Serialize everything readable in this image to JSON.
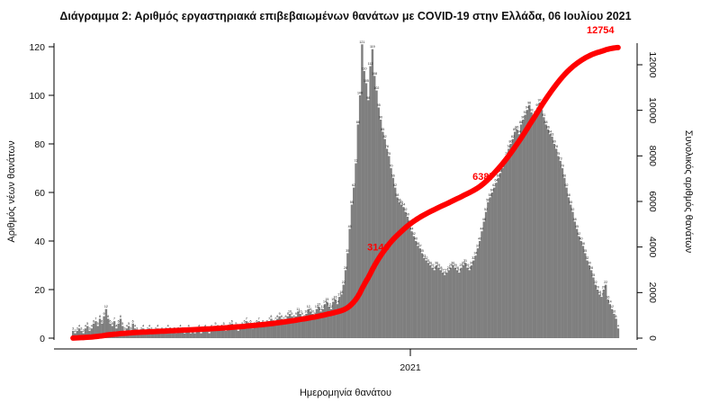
{
  "chart_data": {
    "type": "bar",
    "title": "Διάγραμμα 2: Αριθμός εργαστηριακά επιβεβαιωμένων θανάτων με COVID-19 στην Ελλάδα, 06 Ιουλίου 2021",
    "xlabel": "Ημερομηνία θανάτου",
    "ylabel": "Αριθμός νέων θανάτων",
    "y2label": "Συνολικός αριθμός θανάτων",
    "x_tick_labels": [
      "2021"
    ],
    "ylim": [
      0,
      125
    ],
    "yticks": [
      0,
      20,
      40,
      60,
      80,
      100,
      120
    ],
    "y2lim": [
      0,
      12800
    ],
    "y2ticks": [
      0,
      2000,
      4000,
      6000,
      8000,
      10000,
      12000
    ],
    "grid": false,
    "bar_color": "#7f7f7f",
    "line_color": "#ff0000",
    "series": [
      {
        "type": "bar",
        "values": [
          3,
          2,
          3,
          4,
          3,
          2,
          4,
          5,
          3,
          4,
          6,
          7,
          5,
          8,
          6,
          9,
          12,
          8,
          6,
          5,
          7,
          4,
          6,
          8,
          5,
          3,
          4,
          5,
          3,
          6,
          4,
          3,
          2,
          3,
          4,
          2,
          3,
          4,
          3,
          2,
          3,
          4,
          2,
          3,
          2,
          3,
          4,
          3,
          2,
          3,
          2,
          3,
          4,
          3,
          2,
          3,
          4,
          2,
          3,
          2,
          3,
          4,
          2,
          3,
          4,
          3,
          2,
          4,
          3,
          5,
          4,
          3,
          4,
          5,
          3,
          4,
          5,
          6,
          4,
          5,
          3,
          4,
          5,
          6,
          7,
          5,
          6,
          4,
          5,
          6,
          7,
          5,
          6,
          5,
          6,
          7,
          8,
          6,
          7,
          8,
          9,
          8,
          7,
          8,
          9,
          10,
          9,
          8,
          9,
          11,
          10,
          9,
          8,
          10,
          12,
          11,
          10,
          9,
          12,
          13,
          11,
          12,
          14,
          15,
          13,
          12,
          15,
          16,
          14,
          17,
          18,
          22,
          28,
          35,
          45,
          55,
          62,
          72,
          88,
          100,
          121,
          110,
          105,
          98,
          112,
          119,
          108,
          102,
          95,
          90,
          85,
          82,
          78,
          75,
          70,
          66,
          62,
          58,
          56,
          55,
          54,
          52,
          50,
          47,
          44,
          42,
          40,
          38,
          37,
          35,
          33,
          32,
          31,
          30,
          29,
          28,
          30,
          29,
          28,
          27,
          26,
          27,
          28,
          29,
          30,
          29,
          28,
          27,
          29,
          30,
          31,
          29,
          28,
          30,
          32,
          34,
          37,
          40,
          44,
          48,
          52,
          56,
          58,
          60,
          62,
          64,
          66,
          68,
          70,
          72,
          75,
          78,
          80,
          82,
          85,
          86,
          84,
          88,
          90,
          92,
          94,
          96,
          93,
          90,
          92,
          95,
          97,
          94,
          91,
          88,
          86,
          84,
          83,
          80,
          78,
          75,
          73,
          70,
          66,
          62,
          58,
          55,
          52,
          48,
          45,
          42,
          40,
          38,
          35,
          32,
          30,
          28,
          25,
          22,
          20,
          18,
          17,
          20,
          22,
          16,
          14,
          12,
          10,
          8,
          4
        ]
      },
      {
        "type": "line",
        "name": "",
        "callouts": [
          {
            "value": 3146,
            "index": 146
          },
          {
            "value": 6387,
            "index": 197
          },
          {
            "value": 12754,
            "index": 263
          }
        ]
      }
    ]
  }
}
